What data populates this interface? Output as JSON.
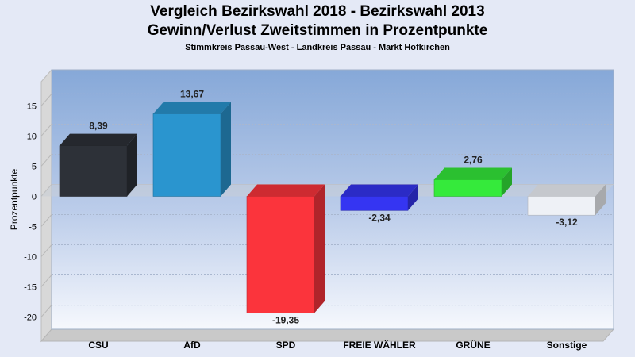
{
  "chart_data": {
    "type": "bar",
    "title": "Vergleich Bezirkswahl 2018 - Bezirkswahl 2013",
    "subtitle": "Gewinn/Verlust Zweitstimmen in Prozentpunkte",
    "subtitle2": "Stimmkreis Passau-West - Landkreis Passau - Markt Hofkirchen",
    "ylabel": "Prozentpunkte",
    "xlabel": "",
    "ylim": [
      -24,
      19
    ],
    "yticks": [
      15,
      10,
      5,
      0,
      -5,
      -10,
      -15,
      -20
    ],
    "ytick_labels": [
      "15",
      "10",
      "5",
      "0",
      "-5",
      "-10",
      "-15",
      "-20"
    ],
    "grid": true,
    "categories": [
      "CSU",
      "AfD",
      "SPD",
      "FREIE WÄHLER",
      "GRÜNE",
      "Sonstige"
    ],
    "values": [
      8.39,
      13.67,
      -19.35,
      -2.34,
      2.76,
      -3.12
    ],
    "value_labels": [
      "8,39",
      "13,67",
      "-19,35",
      "-2,34",
      "2,76",
      "-3,12"
    ],
    "colors": [
      "#2d3138",
      "#2a95cf",
      "#fb343c",
      "#3535f2",
      "#35ea3b",
      "#eef1f6"
    ]
  }
}
